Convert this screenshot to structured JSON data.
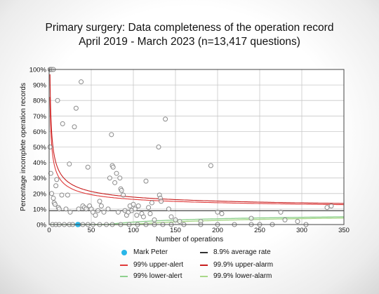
{
  "title": "Primary surgery: Data completeness of the operation record",
  "subtitle": "April 2019 - March 2023 (n=13,417 questions)",
  "chart_data": {
    "type": "scatter",
    "chart_subtype": "funnel plot",
    "xlabel": "Number of operations",
    "ylabel": "Percentage incomplete operation records",
    "xlim": [
      0,
      350
    ],
    "ylim": [
      0,
      100
    ],
    "x_ticks": [
      "0",
      "50",
      "100",
      "150",
      "200",
      "250",
      "300",
      "350"
    ],
    "y_ticks": [
      "0%",
      "10%",
      "20%",
      "30%",
      "40%",
      "50%",
      "60%",
      "70%",
      "80%",
      "90%",
      "100%"
    ],
    "grid": true,
    "average_rate_percent": 8.9,
    "highlight": {
      "name": "Mark Peter",
      "x": 34,
      "y": 0,
      "color": "#29b6e8"
    },
    "colors": {
      "points_stroke": "#8a8a8a",
      "average": "#333333",
      "alert_99": "#e03a3a",
      "alarm_999": "#c81e1e",
      "lower_99": "#8fd08f",
      "lower_999": "#a9d88a"
    },
    "points": [
      [
        1,
        100
      ],
      [
        2,
        100
      ],
      [
        3,
        100
      ],
      [
        5,
        100
      ],
      [
        1,
        50
      ],
      [
        2,
        33
      ],
      [
        3,
        20
      ],
      [
        5,
        17
      ],
      [
        6,
        14
      ],
      [
        7,
        13
      ],
      [
        8,
        25
      ],
      [
        9,
        29
      ],
      [
        10,
        80
      ],
      [
        11,
        11
      ],
      [
        12,
        10
      ],
      [
        15,
        19
      ],
      [
        16,
        65
      ],
      [
        20,
        10
      ],
      [
        22,
        19
      ],
      [
        24,
        39
      ],
      [
        25,
        8
      ],
      [
        30,
        63
      ],
      [
        32,
        75
      ],
      [
        35,
        10
      ],
      [
        38,
        92
      ],
      [
        40,
        12
      ],
      [
        42,
        11
      ],
      [
        44,
        10
      ],
      [
        46,
        37
      ],
      [
        48,
        12
      ],
      [
        50,
        10
      ],
      [
        52,
        8
      ],
      [
        55,
        6
      ],
      [
        58,
        9
      ],
      [
        60,
        15
      ],
      [
        62,
        12
      ],
      [
        65,
        8
      ],
      [
        70,
        10
      ],
      [
        72,
        30
      ],
      [
        74,
        58
      ],
      [
        75,
        38
      ],
      [
        76,
        37
      ],
      [
        78,
        27
      ],
      [
        80,
        33
      ],
      [
        82,
        8
      ],
      [
        84,
        30
      ],
      [
        85,
        23
      ],
      [
        86,
        22
      ],
      [
        88,
        19
      ],
      [
        90,
        9
      ],
      [
        92,
        6
      ],
      [
        94,
        8
      ],
      [
        96,
        12
      ],
      [
        98,
        9
      ],
      [
        100,
        13
      ],
      [
        102,
        10
      ],
      [
        104,
        6
      ],
      [
        106,
        12
      ],
      [
        110,
        7
      ],
      [
        112,
        5
      ],
      [
        115,
        28
      ],
      [
        118,
        11
      ],
      [
        120,
        7
      ],
      [
        122,
        14
      ],
      [
        125,
        3
      ],
      [
        130,
        50
      ],
      [
        131,
        19
      ],
      [
        132,
        17
      ],
      [
        133,
        15
      ],
      [
        138,
        68
      ],
      [
        142,
        10
      ],
      [
        145,
        5
      ],
      [
        150,
        3
      ],
      [
        155,
        2
      ],
      [
        180,
        2
      ],
      [
        192,
        38
      ],
      [
        200,
        8
      ],
      [
        205,
        7
      ],
      [
        240,
        4
      ],
      [
        275,
        8
      ],
      [
        280,
        3
      ],
      [
        295,
        2
      ],
      [
        330,
        11
      ],
      [
        335,
        12
      ],
      [
        4,
        0
      ],
      [
        8,
        0
      ],
      [
        12,
        0
      ],
      [
        18,
        0
      ],
      [
        24,
        0
      ],
      [
        28,
        0
      ],
      [
        35,
        0
      ],
      [
        40,
        0
      ],
      [
        46,
        0
      ],
      [
        52,
        0
      ],
      [
        60,
        0
      ],
      [
        68,
        0
      ],
      [
        75,
        0
      ],
      [
        85,
        0
      ],
      [
        95,
        0
      ],
      [
        105,
        0
      ],
      [
        115,
        0
      ],
      [
        125,
        0
      ],
      [
        135,
        0
      ],
      [
        145,
        0
      ],
      [
        160,
        0
      ],
      [
        180,
        0
      ],
      [
        200,
        0
      ],
      [
        220,
        0
      ],
      [
        240,
        0
      ],
      [
        250,
        0
      ],
      [
        265,
        0
      ],
      [
        305,
        0
      ]
    ],
    "legend": [
      {
        "label": "Mark Peter",
        "kind": "dot",
        "color": "#29b6e8"
      },
      {
        "label": "8.9% average rate",
        "kind": "line",
        "color": "#333333"
      },
      {
        "label": "99% upper-alert",
        "kind": "line",
        "color": "#e03a3a"
      },
      {
        "label": "99.9% upper-alarm",
        "kind": "line",
        "color": "#c81e1e"
      },
      {
        "label": "99% lower-alert",
        "kind": "line",
        "color": "#8fd08f"
      },
      {
        "label": "99.9% lower-alarm",
        "kind": "line",
        "color": "#a9d88a"
      }
    ]
  }
}
